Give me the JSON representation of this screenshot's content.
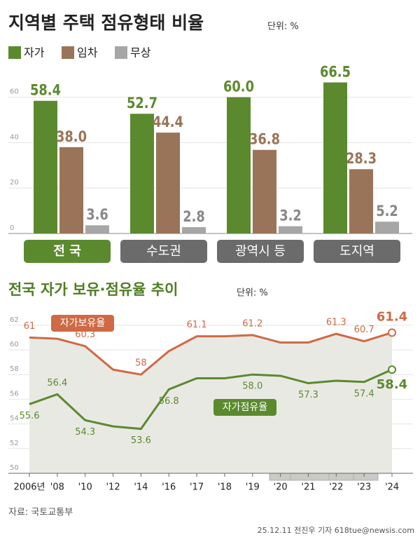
{
  "chart_data": [
    {
      "type": "bar",
      "title": "지역별 주택 점유형태 비율",
      "unit": "단위: %",
      "categories": [
        "전 국",
        "수도권",
        "광역시 등",
        "도지역"
      ],
      "series": [
        {
          "name": "자가",
          "color": "#5b8a2e",
          "values": [
            58.4,
            52.7,
            60.0,
            66.5
          ],
          "value_labels": [
            "58.4",
            "52.7",
            "60.0",
            "66.5"
          ]
        },
        {
          "name": "임차",
          "color": "#9a7458",
          "values": [
            38.0,
            44.4,
            36.8,
            28.3
          ],
          "value_labels": [
            "38.0",
            "44.4",
            "36.8",
            "28.3"
          ]
        },
        {
          "name": "무상",
          "color": "#a6a6a6",
          "values": [
            3.6,
            2.8,
            3.2,
            5.2
          ],
          "value_labels": [
            "3.6",
            "2.8",
            "3.2",
            "5.2"
          ]
        }
      ],
      "ylim": [
        0,
        75
      ],
      "yticks": [
        0,
        20,
        40,
        60
      ],
      "grid": true
    },
    {
      "type": "line",
      "title": "전국 자가 보유·점유율 추이",
      "unit": "단위: %",
      "categories": [
        "2006년",
        "'08",
        "'10",
        "'12",
        "'14",
        "'16",
        "'17",
        "'18",
        "'19",
        "'20",
        "'21",
        "'22",
        "'23",
        "'24"
      ],
      "series": [
        {
          "name": "자가보유율",
          "color": "#cf6a44",
          "values": [
            61,
            60.9,
            60.3,
            58.4,
            58,
            59.9,
            61.1,
            61.1,
            61.2,
            60.6,
            60.6,
            61.3,
            60.7,
            61.4
          ],
          "value_labels": [
            "61",
            null,
            "60.3",
            null,
            "58",
            null,
            "61.1",
            null,
            "61.2",
            null,
            null,
            "61.3",
            "60.7",
            "61.4"
          ]
        },
        {
          "name": "자가점유율",
          "color": "#5b8a2e",
          "values": [
            55.6,
            56.4,
            54.3,
            53.8,
            53.6,
            56.8,
            57.7,
            57.7,
            58.0,
            57.9,
            57.3,
            57.5,
            57.4,
            58.4
          ],
          "value_labels": [
            "55.6",
            "56.4",
            "54.3",
            null,
            "53.6",
            "56.8",
            null,
            null,
            "58.0",
            null,
            "57.3",
            null,
            "57.4",
            "58.4"
          ]
        }
      ],
      "ylim": [
        50,
        62.5
      ],
      "yticks": [
        50,
        52,
        54,
        56,
        58,
        60,
        62
      ],
      "grid": true
    }
  ],
  "source": "자료: 국토교통부",
  "credit": "25.12.11 전진우 기자 618tue@newsis.com"
}
